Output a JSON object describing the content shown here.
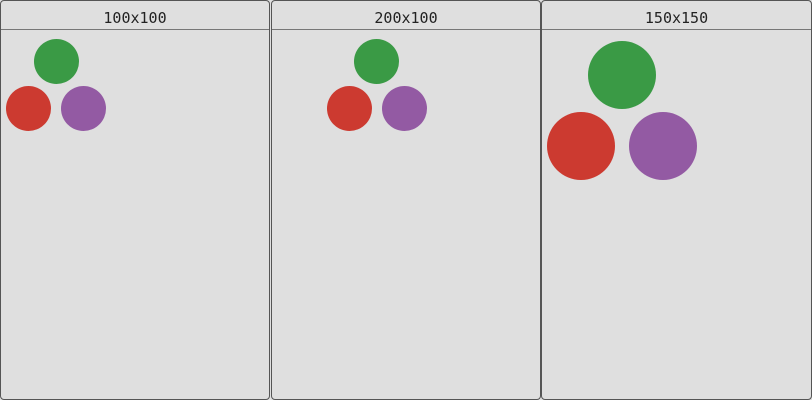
{
  "panels": [
    {
      "title": "100x100"
    },
    {
      "title": "200x100"
    },
    {
      "title": "150x150"
    }
  ],
  "colors": {
    "green": "#3a9a45",
    "red": "#cc3a30",
    "purple": "#935aa3",
    "background": "#dfdfdf"
  }
}
